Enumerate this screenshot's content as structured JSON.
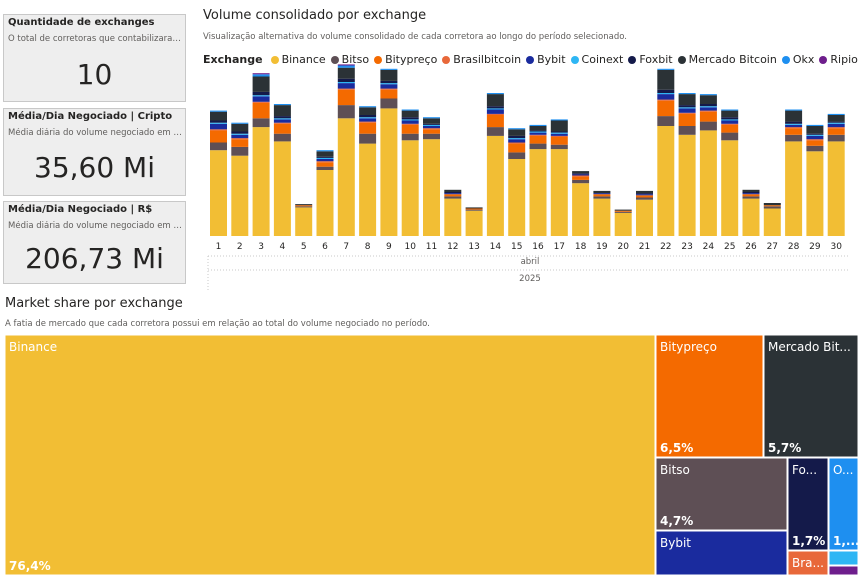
{
  "cards": [
    {
      "title": "Quantidade de exchanges",
      "subtitle": "O total de corretoras que contabilizaram...",
      "value": "10"
    },
    {
      "title": "Média/Dia Negociado | Cripto",
      "subtitle": "Média diária do volume negociado em cr...",
      "value": "35,60 Mi"
    },
    {
      "title": "Média/Dia Negociado | R$",
      "subtitle": "Média diária do volume negociado em r...",
      "value": "206,73 Mi"
    }
  ],
  "volume_section": {
    "title": "Volume consolidado por exchange",
    "subtitle": "Visualização alternativa do volume consolidado de cada corretora ao longo do período selecionado."
  },
  "share_section": {
    "title": "Market share por exchange",
    "subtitle": "A fatia de mercado que cada corretora possui em relação ao total do volume negociado no período."
  },
  "legend_title": "Exchange",
  "colors": {
    "Binance": "#F2BE34",
    "Bitso": "#5E4F55",
    "Bitypreço": "#F46A00",
    "Brasilbitcoin": "#E8683A",
    "Bybit": "#1A2B9E",
    "Coinext": "#2EB6F4",
    "Foxbit": "#141A4A",
    "Mercado Bitcoin": "#2B3236",
    "Okx": "#1E8FF0",
    "Ripio": "#6E1E8C"
  },
  "chart_data": [
    {
      "type": "bar",
      "stacked": true,
      "categories": [
        "1",
        "2",
        "3",
        "4",
        "5",
        "6",
        "7",
        "8",
        "9",
        "10",
        "11",
        "12",
        "13",
        "14",
        "15",
        "16",
        "17",
        "18",
        "19",
        "20",
        "21",
        "22",
        "23",
        "24",
        "25",
        "26",
        "27",
        "28",
        "29",
        "30"
      ],
      "month_label": "abril",
      "year_label": "2025",
      "series": [
        {
          "name": "Binance",
          "values": [
            78,
            73,
            99,
            86,
            26,
            60,
            107,
            84,
            116,
            87,
            88,
            34,
            23,
            91,
            70,
            79,
            79,
            48,
            34,
            21,
            33,
            100,
            92,
            96,
            87,
            34,
            25,
            86,
            77,
            86
          ]
        },
        {
          "name": "Bitso",
          "values": [
            7,
            8,
            8,
            7,
            1,
            3,
            12,
            9,
            9,
            6,
            5,
            2,
            1,
            8,
            6,
            5,
            4,
            3,
            2,
            1,
            2,
            9,
            8,
            8,
            7,
            2,
            2,
            6,
            5,
            6
          ]
        },
        {
          "name": "Bitypreço",
          "values": [
            11,
            7,
            14,
            9,
            1,
            4,
            14,
            10,
            8,
            8,
            4,
            2,
            1,
            11,
            8,
            7,
            7,
            3,
            2,
            1,
            2,
            14,
            11,
            9,
            7,
            2,
            1,
            6,
            5,
            6
          ]
        },
        {
          "name": "Brasilbitcoin",
          "values": [
            1,
            1,
            1,
            1,
            0,
            1,
            1,
            1,
            1,
            1,
            1,
            0,
            0,
            1,
            1,
            1,
            1,
            1,
            0,
            0,
            0,
            1,
            1,
            1,
            1,
            0,
            0,
            1,
            1,
            1
          ]
        },
        {
          "name": "Bybit",
          "values": [
            5,
            3,
            5,
            3,
            0,
            2,
            5,
            3,
            4,
            3,
            2,
            1,
            0,
            4,
            3,
            2,
            2,
            1,
            1,
            0,
            1,
            5,
            4,
            3,
            3,
            1,
            0,
            2,
            3,
            3
          ]
        },
        {
          "name": "Coinext",
          "values": [
            1,
            1,
            1,
            1,
            0,
            1,
            1,
            1,
            1,
            1,
            1,
            0,
            0,
            1,
            1,
            1,
            1,
            0,
            0,
            0,
            0,
            1,
            1,
            1,
            1,
            0,
            0,
            1,
            1,
            1
          ]
        },
        {
          "name": "Foxbit",
          "values": [
            2,
            2,
            3,
            2,
            0,
            1,
            3,
            2,
            2,
            2,
            1,
            1,
            0,
            2,
            2,
            1,
            1,
            1,
            0,
            0,
            1,
            3,
            2,
            2,
            2,
            1,
            0,
            2,
            1,
            1
          ]
        },
        {
          "name": "Mercado Bitcoin",
          "values": [
            8,
            7,
            14,
            10,
            1,
            5,
            10,
            7,
            10,
            6,
            5,
            2,
            1,
            11,
            6,
            4,
            10,
            2,
            2,
            1,
            2,
            18,
            10,
            8,
            6,
            2,
            2,
            10,
            7,
            6
          ]
        },
        {
          "name": "Okx",
          "values": [
            1,
            1,
            2,
            1,
            0,
            1,
            2,
            1,
            1,
            1,
            1,
            0,
            0,
            1,
            1,
            1,
            1,
            0,
            0,
            0,
            0,
            1,
            1,
            1,
            1,
            0,
            0,
            1,
            1,
            1
          ]
        },
        {
          "name": "Ripio",
          "values": [
            0,
            0,
            1,
            0,
            0,
            0,
            1,
            0,
            0,
            0,
            0,
            0,
            0,
            0,
            0,
            0,
            0,
            0,
            0,
            0,
            0,
            0,
            0,
            0,
            0,
            0,
            0,
            0,
            0,
            0
          ]
        }
      ]
    },
    {
      "type": "treemap",
      "items": [
        {
          "name": "Binance",
          "label": "Binance",
          "value": 76.4,
          "value_label": "76,4%"
        },
        {
          "name": "Bitypreço",
          "label": "Bitypreço",
          "value": 6.5,
          "value_label": "6,5%"
        },
        {
          "name": "Mercado Bitcoin",
          "label": "Mercado Bit...",
          "value": 5.7,
          "value_label": "5,7%"
        },
        {
          "name": "Bitso",
          "label": "Bitso",
          "value": 4.7,
          "value_label": "4,7%"
        },
        {
          "name": "Bybit",
          "label": "Bybit",
          "value": 3.0,
          "value_label": ""
        },
        {
          "name": "Foxbit",
          "label": "Fo...",
          "value": 1.7,
          "value_label": "1,7%"
        },
        {
          "name": "Brasilbitcoin",
          "label": "Bra...",
          "value": 0.7,
          "value_label": ""
        },
        {
          "name": "Okx",
          "label": "O...",
          "value": 1.0,
          "value_label": "1,..."
        },
        {
          "name": "Coinext",
          "label": "",
          "value": 0.2,
          "value_label": ""
        },
        {
          "name": "Ripio",
          "label": "",
          "value": 0.1,
          "value_label": ""
        }
      ]
    }
  ]
}
